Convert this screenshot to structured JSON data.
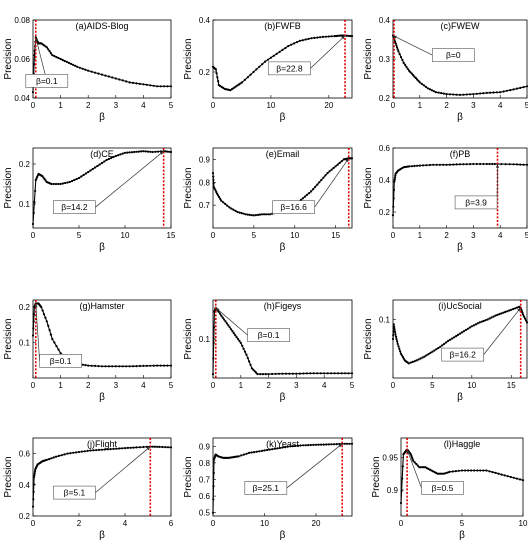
{
  "chart_data": [
    {
      "type": "line",
      "title": "(a)AIDS-Blog",
      "xlabel": "β",
      "ylabel": "Precision",
      "xlim": [
        0,
        5
      ],
      "ylim": [
        0.04,
        0.08
      ],
      "xticks": [
        "0",
        "1",
        "2",
        "3",
        "4",
        "5"
      ],
      "yticks": [
        "0.04",
        "0.06",
        "0.08"
      ],
      "x": [
        0,
        0.05,
        0.1,
        0.2,
        0.3,
        0.5,
        0.7,
        1.0,
        1.3,
        1.6,
        2.0,
        2.5,
        3.0,
        3.5,
        4.0,
        4.5,
        5.0
      ],
      "y": [
        0.043,
        0.062,
        0.071,
        0.068,
        0.068,
        0.066,
        0.062,
        0.06,
        0.058,
        0.056,
        0.054,
        0.052,
        0.05,
        0.048,
        0.047,
        0.046,
        0.046
      ],
      "marker_x": 0.1,
      "annotation": "β=0.1"
    },
    {
      "type": "line",
      "title": "(b)FWFB",
      "xlabel": "β",
      "ylabel": "Precision",
      "xlim": [
        0,
        24
      ],
      "ylim": [
        0.1,
        0.4
      ],
      "xticks": [
        "0",
        "10",
        "20"
      ],
      "yticks": [
        "0.2",
        "0.4"
      ],
      "x": [
        0,
        0.5,
        1,
        2,
        3,
        4,
        5,
        7,
        9,
        11,
        13,
        15,
        17,
        19,
        21,
        22,
        22.8,
        24
      ],
      "y": [
        0.22,
        0.21,
        0.15,
        0.135,
        0.13,
        0.145,
        0.16,
        0.2,
        0.24,
        0.27,
        0.3,
        0.32,
        0.33,
        0.335,
        0.338,
        0.34,
        0.34,
        0.338
      ],
      "marker_x": 22.8,
      "annotation": "β=22.8"
    },
    {
      "type": "line",
      "title": "(c)FWEW",
      "xlabel": "β",
      "ylabel": "Precision",
      "xlim": [
        0,
        5
      ],
      "ylim": [
        0.2,
        0.4
      ],
      "xticks": [
        "0",
        "1",
        "2",
        "3",
        "4",
        "5"
      ],
      "yticks": [
        "0.2",
        "0.3",
        "0.4"
      ],
      "x": [
        0,
        0.1,
        0.2,
        0.4,
        0.6,
        0.8,
        1.0,
        1.3,
        1.6,
        2.0,
        2.5,
        3.0,
        3.5,
        4.0,
        4.5,
        5.0
      ],
      "y": [
        0.36,
        0.34,
        0.32,
        0.29,
        0.27,
        0.255,
        0.24,
        0.225,
        0.215,
        0.21,
        0.208,
        0.21,
        0.213,
        0.215,
        0.222,
        0.23
      ],
      "marker_x": 0,
      "annotation": "β=0"
    },
    {
      "type": "line",
      "title": "(d)CE",
      "xlabel": "β",
      "ylabel": "Precision",
      "xlim": [
        0,
        15
      ],
      "ylim": [
        0.04,
        0.24
      ],
      "xticks": [
        "0",
        "5",
        "10",
        "15"
      ],
      "yticks": [
        "0.1",
        "0.2"
      ],
      "x": [
        0,
        0.3,
        0.6,
        1.0,
        1.5,
        2,
        3,
        4,
        5,
        6,
        7,
        8,
        9,
        10,
        11,
        12,
        13,
        14.2,
        15
      ],
      "y": [
        0.05,
        0.16,
        0.175,
        0.17,
        0.155,
        0.15,
        0.15,
        0.155,
        0.165,
        0.18,
        0.195,
        0.21,
        0.22,
        0.228,
        0.23,
        0.232,
        0.23,
        0.232,
        0.23
      ],
      "marker_x": 14.2,
      "annotation": "β=14.2"
    },
    {
      "type": "line",
      "title": "(e)Email",
      "xlabel": "β",
      "ylabel": "Precision",
      "xlim": [
        0,
        17
      ],
      "ylim": [
        0.6,
        0.95
      ],
      "xticks": [
        "0",
        "5",
        "10",
        "15"
      ],
      "yticks": [
        "0.7",
        "0.8",
        "0.9"
      ],
      "x": [
        0,
        0.1,
        0.5,
        1,
        2,
        3,
        4,
        5,
        6,
        7,
        8,
        9,
        10,
        11,
        12,
        13,
        14,
        15,
        16,
        16.6,
        17
      ],
      "y": [
        0.84,
        0.78,
        0.75,
        0.72,
        0.69,
        0.67,
        0.66,
        0.655,
        0.66,
        0.66,
        0.67,
        0.68,
        0.7,
        0.73,
        0.76,
        0.8,
        0.84,
        0.87,
        0.9,
        0.905,
        0.905
      ],
      "marker_x": 16.6,
      "annotation": "β=16.6"
    },
    {
      "type": "line",
      "title": "(f)PB",
      "xlabel": "β",
      "ylabel": "Precision",
      "xlim": [
        0,
        5
      ],
      "ylim": [
        0.1,
        0.6
      ],
      "xticks": [
        "0",
        "1",
        "2",
        "3",
        "4",
        "5"
      ],
      "yticks": [
        "0.2",
        "0.4",
        "0.6"
      ],
      "x": [
        0,
        0.05,
        0.1,
        0.2,
        0.4,
        0.6,
        1,
        1.5,
        2,
        2.5,
        3,
        3.5,
        3.9,
        4.5,
        5
      ],
      "y": [
        0.18,
        0.39,
        0.44,
        0.46,
        0.48,
        0.485,
        0.49,
        0.495,
        0.495,
        0.498,
        0.5,
        0.5,
        0.5,
        0.498,
        0.495
      ],
      "marker_x": 3.9,
      "annotation": "β=3.9"
    },
    {
      "type": "line",
      "title": "(g)Hamster",
      "xlabel": "β",
      "ylabel": "Precision",
      "xlim": [
        0,
        5
      ],
      "ylim": [
        0,
        0.22
      ],
      "xticks": [
        "0",
        "1",
        "2",
        "3",
        "4",
        "5"
      ],
      "yticks": [
        "0.1",
        "0.2"
      ],
      "x": [
        0,
        0.05,
        0.1,
        0.2,
        0.3,
        0.5,
        0.7,
        1.0,
        1.3,
        1.6,
        2,
        2.5,
        3,
        3.5,
        4,
        4.5,
        5
      ],
      "y": [
        0.12,
        0.2,
        0.21,
        0.21,
        0.2,
        0.16,
        0.11,
        0.07,
        0.05,
        0.04,
        0.035,
        0.033,
        0.033,
        0.033,
        0.034,
        0.035,
        0.035
      ],
      "marker_x": 0.1,
      "annotation": "β=0.1"
    },
    {
      "type": "line",
      "title": "(h)Figeys",
      "xlabel": "β",
      "ylabel": "Precision",
      "xlim": [
        0,
        5
      ],
      "ylim": [
        0,
        0.2
      ],
      "xticks": [
        "0",
        "1",
        "2",
        "3",
        "4",
        "5"
      ],
      "yticks": [
        "0.1"
      ],
      "x": [
        0,
        0.05,
        0.1,
        0.2,
        0.4,
        0.6,
        0.8,
        1.0,
        1.2,
        1.4,
        1.6,
        2,
        2.5,
        3,
        3.5,
        4,
        4.5,
        5
      ],
      "y": [
        0.01,
        0.17,
        0.18,
        0.17,
        0.15,
        0.13,
        0.11,
        0.09,
        0.06,
        0.025,
        0.01,
        0.01,
        0.011,
        0.011,
        0.012,
        0.012,
        0.012,
        0.012
      ],
      "marker_x": 0.1,
      "annotation": "β=0.1"
    },
    {
      "type": "line",
      "title": "(i)UcSocial",
      "xlabel": "β",
      "ylabel": "Precision",
      "xlim": [
        0,
        17
      ],
      "ylim": [
        0.04,
        0.12
      ],
      "xticks": [
        "0",
        "5",
        "10",
        "15"
      ],
      "yticks": [
        "0.1"
      ],
      "x": [
        0,
        0.1,
        0.3,
        0.6,
        1,
        1.5,
        2,
        3,
        4,
        5,
        6,
        7,
        8,
        9,
        10,
        11,
        12,
        13,
        14,
        15,
        16,
        16.2,
        16.5,
        17
      ],
      "y": [
        0.08,
        0.095,
        0.085,
        0.075,
        0.065,
        0.058,
        0.055,
        0.058,
        0.062,
        0.067,
        0.072,
        0.078,
        0.083,
        0.088,
        0.093,
        0.097,
        0.1,
        0.104,
        0.107,
        0.11,
        0.113,
        0.112,
        0.105,
        0.097
      ],
      "marker_x": 16.2,
      "annotation": "β=16.2"
    },
    {
      "type": "line",
      "title": "(j)Flight",
      "xlabel": "β",
      "ylabel": "Precision",
      "xlim": [
        0,
        6
      ],
      "ylim": [
        0.2,
        0.7
      ],
      "xticks": [
        "0",
        "2",
        "4",
        "6"
      ],
      "yticks": [
        "0.2",
        "0.4",
        "0.6"
      ],
      "x": [
        0,
        0.05,
        0.1,
        0.2,
        0.4,
        0.6,
        1,
        1.5,
        2,
        2.5,
        3,
        3.5,
        4,
        4.5,
        5.1,
        5.5,
        6
      ],
      "y": [
        0.26,
        0.45,
        0.5,
        0.53,
        0.55,
        0.56,
        0.58,
        0.6,
        0.61,
        0.62,
        0.625,
        0.63,
        0.635,
        0.64,
        0.645,
        0.643,
        0.64
      ],
      "marker_x": 5.1,
      "annotation": "β=5.1"
    },
    {
      "type": "line",
      "title": "(k)Yeast",
      "xlabel": "β",
      "ylabel": "Precision",
      "xlim": [
        0,
        27
      ],
      "ylim": [
        0.48,
        0.95
      ],
      "xticks": [
        "0",
        "10",
        "20"
      ],
      "yticks": [
        "0.5",
        "0.6",
        "0.7",
        "0.8",
        "0.9"
      ],
      "x": [
        0,
        0.2,
        0.5,
        1,
        2,
        3,
        4,
        5,
        7,
        9,
        11,
        13,
        15,
        17,
        19,
        21,
        23,
        25.1,
        27
      ],
      "y": [
        0.5,
        0.82,
        0.85,
        0.84,
        0.83,
        0.83,
        0.835,
        0.84,
        0.86,
        0.87,
        0.88,
        0.89,
        0.9,
        0.905,
        0.908,
        0.91,
        0.912,
        0.915,
        0.915
      ],
      "marker_x": 25.1,
      "annotation": "β=25.1"
    },
    {
      "type": "line",
      "title": "(l)Haggle",
      "xlabel": "β",
      "ylabel": "Precision",
      "xlim": [
        0,
        10
      ],
      "ylim": [
        0.86,
        0.98
      ],
      "xticks": [
        "0",
        "5",
        "10"
      ],
      "yticks": [
        "0.9",
        "0.95"
      ],
      "x": [
        0,
        0.2,
        0.4,
        0.5,
        0.6,
        0.8,
        1.0,
        1.5,
        2,
        2.5,
        3,
        3.5,
        4,
        5,
        6,
        7,
        8,
        9,
        10
      ],
      "y": [
        0.88,
        0.955,
        0.96,
        0.962,
        0.96,
        0.955,
        0.945,
        0.935,
        0.935,
        0.93,
        0.925,
        0.925,
        0.928,
        0.93,
        0.93,
        0.93,
        0.925,
        0.92,
        0.915
      ],
      "marker_x": 0.5,
      "annotation": "β=0.5"
    }
  ]
}
